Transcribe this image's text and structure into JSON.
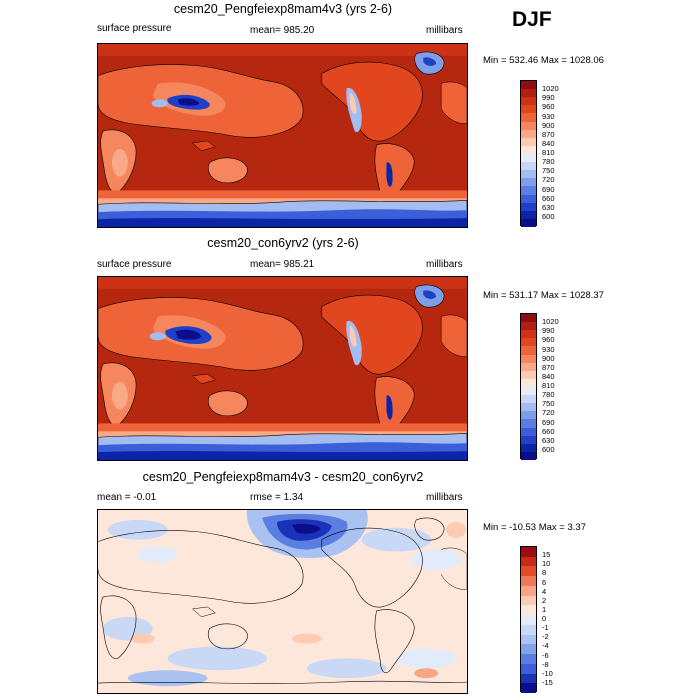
{
  "season": "DJF",
  "colors": {
    "pressure": [
      "#0c0d8a",
      "#0b25a8",
      "#1f41c8",
      "#3a5fd8",
      "#5a7ee2",
      "#7e9ee8",
      "#a3bdf0",
      "#c6d6f5",
      "#e4ecfa",
      "#fde7da",
      "#fccbb2",
      "#f9a987",
      "#f5865e",
      "#ee6338",
      "#e2461e",
      "#cc3215",
      "#b01f0f",
      "#8e0d0d"
    ],
    "difference": [
      "#0c0d8a",
      "#1a32b8",
      "#3a5fd8",
      "#5a7ee2",
      "#84a4ea",
      "#a9c2f1",
      "#c9d9f5",
      "#e2ebfa",
      "#fde7da",
      "#fccbb2",
      "#f7a583",
      "#f0795a",
      "#e44b2b",
      "#c92a18",
      "#9c0e0e"
    ]
  },
  "panels": [
    {
      "title": "cesm20_Pengfeiexp8mam4v3 (yrs 2-6)",
      "left_label": "surface pressure",
      "center_label": "mean= 985.20",
      "right_label": "millibars",
      "minmax": "Min = 532.46 Max = 1028.06",
      "colorbar_labels": [
        "1020",
        "990",
        "960",
        "930",
        "900",
        "870",
        "840",
        "810",
        "780",
        "750",
        "720",
        "690",
        "660",
        "630",
        "600"
      ]
    },
    {
      "title": "cesm20_con6yrv2 (yrs 2-6)",
      "left_label": "surface pressure",
      "center_label": "mean= 985.21",
      "right_label": "millibars",
      "minmax": "Min = 531.17 Max = 1028.37",
      "colorbar_labels": [
        "1020",
        "990",
        "960",
        "930",
        "900",
        "870",
        "840",
        "810",
        "780",
        "750",
        "720",
        "690",
        "660",
        "630",
        "600"
      ]
    },
    {
      "title": "cesm20_Pengfeiexp8mam4v3 - cesm20_con6yrv2",
      "left_label": "mean =  -0.01",
      "center_label": "rmse =   1.34",
      "right_label": "millibars",
      "minmax": "Min = -10.53 Max =   3.37",
      "colorbar_labels": [
        "15",
        "10",
        "8",
        "6",
        "4",
        "2",
        "1",
        "0",
        "-1",
        "-2",
        "-4",
        "-6",
        "-8",
        "-10",
        "-15"
      ]
    }
  ],
  "chart_data": [
    {
      "type": "heatmap",
      "title": "cesm20_Pengfeiexp8mam4v3 (yrs 2-6)",
      "variable": "surface pressure",
      "units": "millibars",
      "mean": 985.2,
      "min": 532.46,
      "max": 1028.06,
      "contour_levels": [
        600,
        630,
        660,
        690,
        720,
        750,
        780,
        810,
        840,
        870,
        900,
        930,
        960,
        990,
        1020
      ],
      "projection": "global cylindrical, centered on Pacific"
    },
    {
      "type": "heatmap",
      "title": "cesm20_con6yrv2 (yrs 2-6)",
      "variable": "surface pressure",
      "units": "millibars",
      "mean": 985.21,
      "min": 531.17,
      "max": 1028.37,
      "contour_levels": [
        600,
        630,
        660,
        690,
        720,
        750,
        780,
        810,
        840,
        870,
        900,
        930,
        960,
        990,
        1020
      ],
      "projection": "global cylindrical, centered on Pacific"
    },
    {
      "type": "heatmap",
      "title": "cesm20_Pengfeiexp8mam4v3 - cesm20_con6yrv2",
      "units": "millibars",
      "mean": -0.01,
      "rmse": 1.34,
      "min": -10.53,
      "max": 3.37,
      "contour_levels": [
        -15,
        -10,
        -8,
        -6,
        -4,
        -2,
        -1,
        0,
        1,
        2,
        4,
        6,
        8,
        10,
        15
      ]
    }
  ]
}
